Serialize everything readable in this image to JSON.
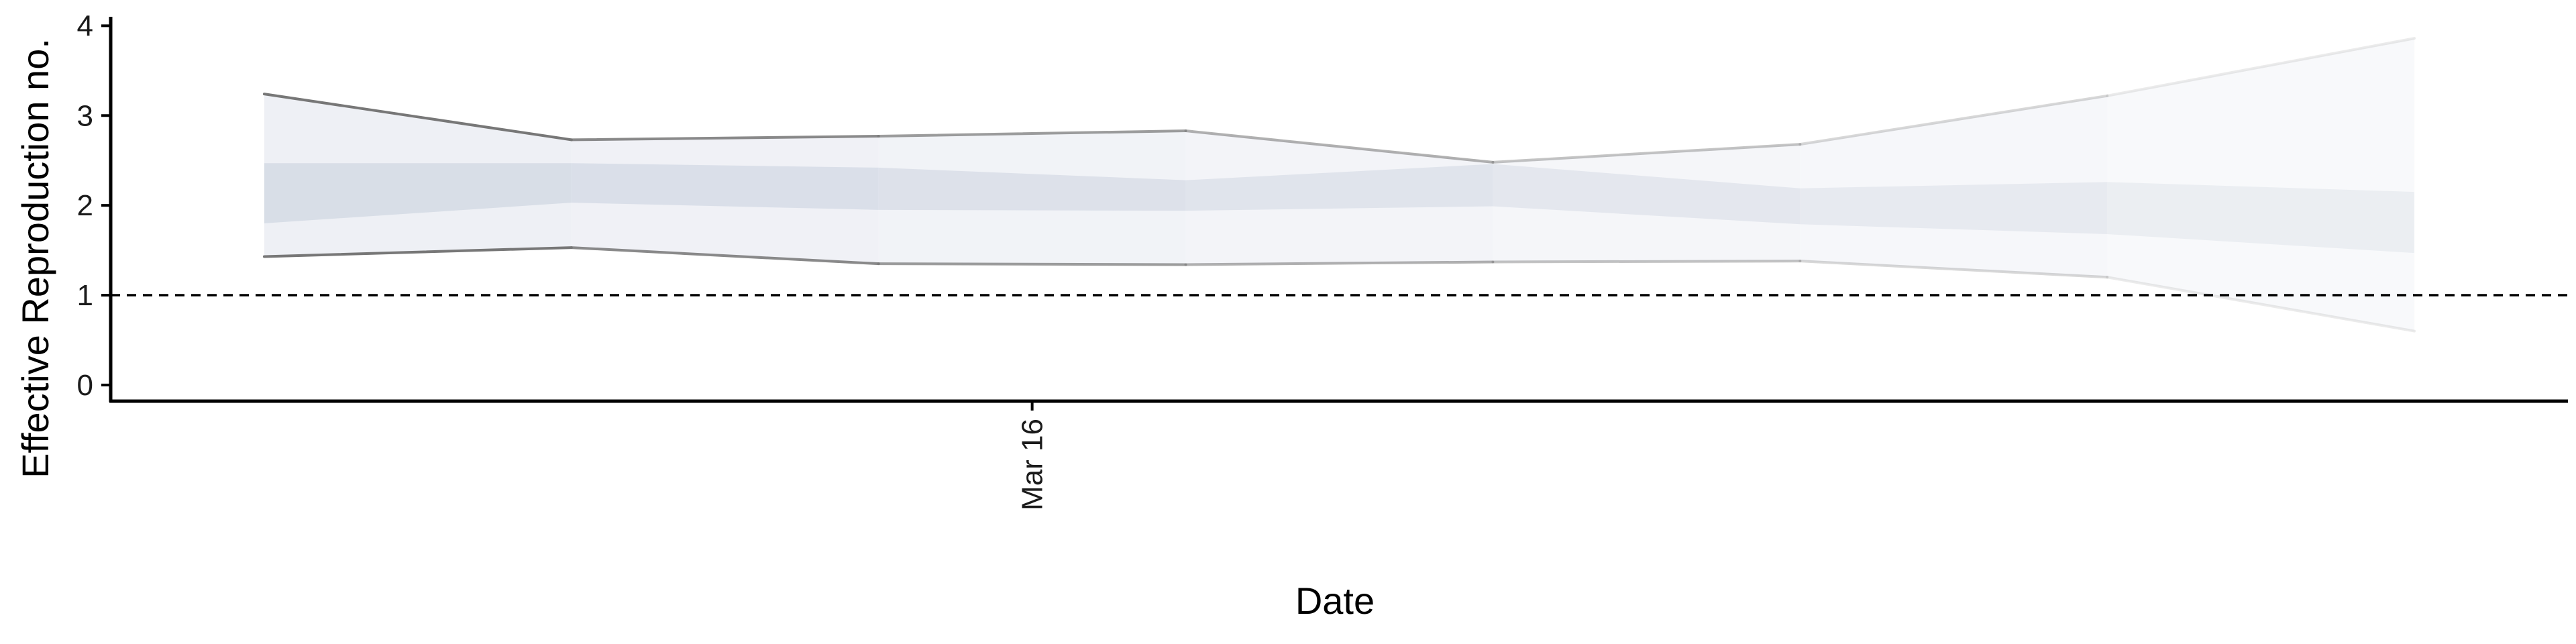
{
  "chart_data": {
    "type": "area",
    "title": "",
    "xlabel": "Date",
    "ylabel": "Effective Reproduction no.",
    "x": [
      "2020-03-11",
      "2020-03-13",
      "2020-03-15",
      "2020-03-17",
      "2020-03-19",
      "2020-03-21",
      "2020-03-23",
      "2020-03-25"
    ],
    "x_tick_labels": [
      {
        "date": "2020-03-16",
        "label": "Mar 16"
      }
    ],
    "y_ticks": [
      0,
      1,
      2,
      3,
      4
    ],
    "ylim": [
      -0.18,
      4.1
    ],
    "xlim": [
      "2020-03-10",
      "2020-03-26"
    ],
    "reference_line": {
      "y": 1,
      "style": "dashed"
    },
    "series": [
      {
        "lower_90": [
          1.43,
          1.53,
          1.35,
          1.34,
          1.37,
          1.38,
          1.2,
          0.6
        ],
        "upper_90": [
          3.24,
          2.73,
          2.77,
          2.83,
          2.48,
          2.68,
          3.22,
          3.86
        ],
        "lower_50": [
          1.8,
          2.03,
          1.95,
          1.94,
          1.99,
          1.79,
          1.68,
          1.47
        ],
        "upper_50": [
          2.47,
          2.47,
          2.42,
          2.28,
          2.46,
          2.19,
          2.26,
          2.15
        ]
      }
    ],
    "colors": {
      "outer_band": "#edeff4",
      "inner_band": "#d6dce6",
      "interval_line": "#777777",
      "axis": "#000000"
    },
    "legend": "none",
    "grid": false
  }
}
